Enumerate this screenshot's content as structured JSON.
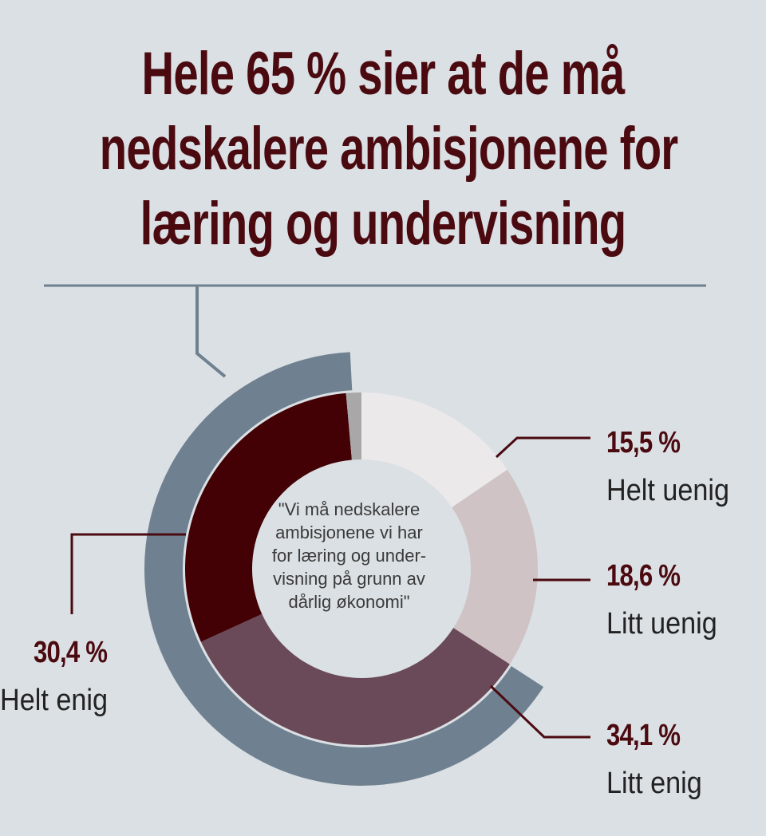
{
  "chart_data": {
    "type": "pie",
    "title_lines": [
      "Hele 65 % sier at de må",
      "nedskalere ambisjonene for",
      "læring og undervisning"
    ],
    "center_text": [
      "\"Vi må nedskalere",
      "ambisjonene vi har",
      "for læring og under-",
      "visning på grunn av",
      "dårlig økonomi\""
    ],
    "slices": [
      {
        "label": "Helt uenig",
        "value": 15.5,
        "value_label": "15,5 %",
        "color": "#ece9ea"
      },
      {
        "label": "Litt uenig",
        "value": 18.6,
        "value_label": "18,6 %",
        "color": "#cfc3c6"
      },
      {
        "label": "Litt enig",
        "value": 34.1,
        "value_label": "34,1 %",
        "color": "#6a4a58"
      },
      {
        "label": "Helt enig",
        "value": 30.4,
        "value_label": "30,4 %",
        "color": "#430005"
      },
      {
        "label": "",
        "value": 1.4,
        "value_label": "",
        "color": "#a8a8a8"
      }
    ],
    "outer_arc": {
      "value": 65,
      "color": "#6f8090"
    }
  },
  "colors": {
    "background": "#dbe0e4",
    "title": "#4a0a10",
    "leader": "#4a0a10",
    "rule": "#6f8090"
  }
}
